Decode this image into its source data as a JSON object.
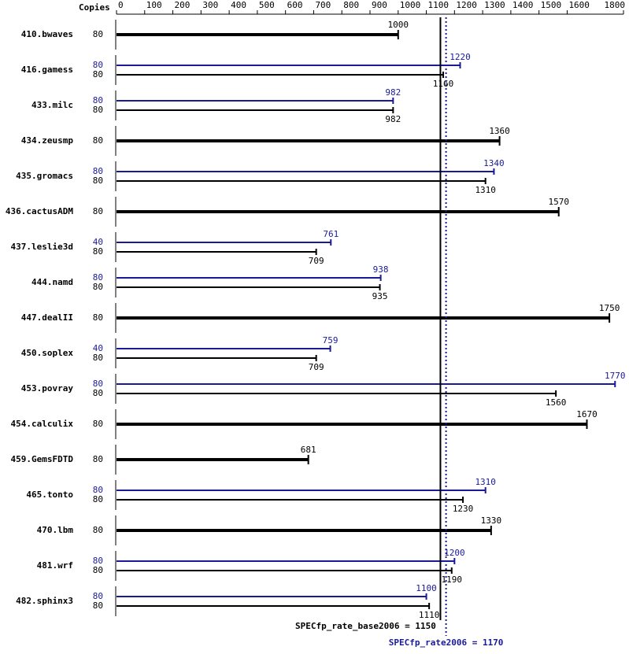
{
  "chart_data": {
    "type": "bar",
    "orientation": "horizontal",
    "column_header": "Copies",
    "categories": [
      "410.bwaves",
      "416.gamess",
      "433.milc",
      "434.zeusmp",
      "435.gromacs",
      "436.cactusADM",
      "437.leslie3d",
      "444.namd",
      "447.dealII",
      "450.soplex",
      "453.povray",
      "454.calculix",
      "459.GemsFDTD",
      "465.tonto",
      "470.lbm",
      "481.wrf",
      "482.sphinx3"
    ],
    "series": [
      {
        "color": "#1a1a99",
        "copies": [
          null,
          80,
          80,
          null,
          80,
          null,
          40,
          80,
          null,
          40,
          80,
          null,
          null,
          80,
          null,
          80,
          80
        ],
        "values": [
          null,
          1220,
          982,
          null,
          1340,
          null,
          761,
          938,
          null,
          759,
          1770,
          null,
          null,
          1310,
          null,
          1200,
          1100
        ]
      },
      {
        "color": "#000000",
        "copies": [
          80,
          80,
          80,
          80,
          80,
          80,
          80,
          80,
          80,
          80,
          80,
          80,
          80,
          80,
          80,
          80,
          80
        ],
        "values": [
          1000,
          1160,
          982,
          1360,
          1310,
          1570,
          709,
          935,
          1750,
          709,
          1560,
          1670,
          681,
          1230,
          1330,
          1190,
          1110
        ]
      }
    ],
    "xlim": [
      0,
      1800
    ],
    "xticks": [
      0,
      100,
      200,
      300,
      400,
      500,
      600,
      700,
      800,
      900,
      1000,
      1100,
      1200,
      1300,
      1400,
      1500,
      1600,
      1800
    ],
    "reference_lines": [
      {
        "value": 1150,
        "label": "SPECfp_rate_base2006 = 1150",
        "color": "#000000",
        "style": "solid"
      },
      {
        "value": 1170,
        "label": "SPECfp_rate2006 = 1170",
        "color": "#1a1a99",
        "style": "dotted"
      }
    ]
  }
}
